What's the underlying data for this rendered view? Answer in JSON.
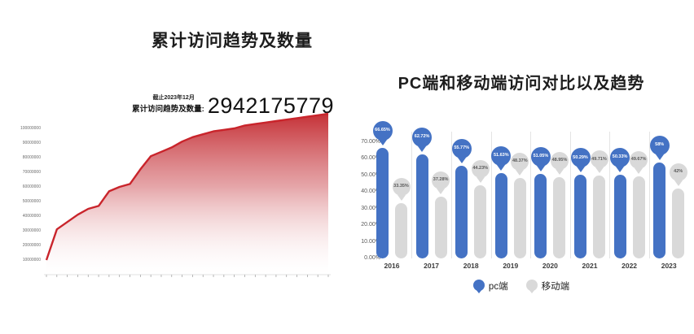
{
  "chart_data": [
    {
      "type": "area",
      "title": "累计访问趋势及数量",
      "annotation": {
        "note": "截止2023年12月",
        "label": "累计访问趋势及数量:",
        "value": "2942175779"
      },
      "x": [
        "2017年第一季度",
        "2017年第二季度",
        "2017年第三季度",
        "2017年第四季度",
        "2018年第一季度",
        "2018年第二季度",
        "2018年第三季度",
        "2018年第四季度",
        "2019年第一季度",
        "2019年第二季度",
        "2019年第三季度",
        "2019年第四季度",
        "2020年第一季度",
        "2020年第二季度",
        "2020年第三季度",
        "2020年第四季度",
        "2021年第一季度",
        "2021年第二季度",
        "2021年第三季度",
        "2021年第四季度",
        "2022年第一季度",
        "2022年第二季度",
        "2022年第三季度",
        "2022年第四季度",
        "2023年第一季度",
        "2023年第二季度",
        "2023年第三季度",
        "2023年第四季度"
      ],
      "values": [
        10000000,
        31000000,
        36000000,
        41000000,
        45000000,
        47000000,
        57000000,
        60000000,
        62000000,
        72000000,
        81000000,
        84000000,
        87000000,
        91000000,
        94000000,
        96000000,
        98000000,
        99000000,
        100000000,
        102000000,
        103000000,
        104000000,
        105000000,
        106000000,
        107000000,
        108000000,
        109000000,
        110000000
      ],
      "yticks": [
        10000000,
        20000000,
        30000000,
        40000000,
        50000000,
        60000000,
        70000000,
        80000000,
        90000000,
        100000000
      ],
      "ylim": [
        0,
        113000000
      ],
      "grid": false,
      "line_color": "#c9242b",
      "fill_gradient_top": "#c2262c",
      "fill_gradient_bottom": "#ffffff"
    },
    {
      "type": "bar",
      "variant": "lollipop",
      "title": "PC端和移动端访问对比以及趋势",
      "categories": [
        "2016",
        "2017",
        "2018",
        "2019",
        "2020",
        "2021",
        "2022",
        "2023"
      ],
      "series": [
        {
          "name": "pc端",
          "color": "#4472c4",
          "label_text_color": "#ffffff",
          "values": [
            66.65,
            62.72,
            55.77,
            51.63,
            51.05,
            50.29,
            50.33,
            58
          ],
          "labels": [
            "66.65%",
            "62.72%",
            "55.77%",
            "51.63%",
            "51.05%",
            "50.29%",
            "50.33%",
            "58%"
          ]
        },
        {
          "name": "移动端",
          "color": "#d9d9d9",
          "label_text_color": "#595959",
          "values": [
            33.35,
            37.28,
            44.23,
            48.37,
            48.95,
            49.71,
            49.67,
            42
          ],
          "labels": [
            "33.35%",
            "37.28%",
            "44.23%",
            "48.37%",
            "48.95%",
            "49.71%",
            "49.67%",
            "42%"
          ]
        }
      ],
      "yticks": [
        "0.00%",
        "10.00%",
        "20.00%",
        "30.00%",
        "40.00%",
        "50.00%",
        "60.00%",
        "70.00%"
      ],
      "ylim": [
        0,
        70
      ],
      "legend_position": "bottom"
    }
  ]
}
